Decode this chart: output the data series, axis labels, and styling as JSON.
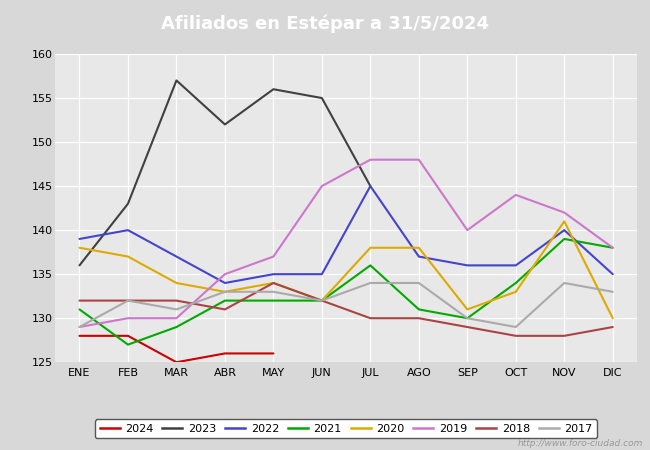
{
  "title": "Afiliados en Estépar a 31/5/2024",
  "title_bg_color": "#4472c4",
  "title_text_color": "white",
  "ylim": [
    125,
    160
  ],
  "yticks": [
    125,
    130,
    135,
    140,
    145,
    150,
    155,
    160
  ],
  "months": [
    "ENE",
    "FEB",
    "MAR",
    "ABR",
    "MAY",
    "JUN",
    "JUL",
    "AGO",
    "SEP",
    "OCT",
    "NOV",
    "DIC"
  ],
  "watermark": "http://www.foro-ciudad.com",
  "series": {
    "2024": {
      "color": "#cc0000",
      "data": [
        128,
        128,
        125,
        126,
        126,
        null,
        null,
        null,
        null,
        null,
        null,
        null
      ]
    },
    "2023": {
      "color": "#404040",
      "data": [
        136,
        143,
        157,
        152,
        156,
        155,
        145,
        null,
        null,
        null,
        null,
        null
      ]
    },
    "2022": {
      "color": "#4444cc",
      "data": [
        139,
        140,
        137,
        134,
        135,
        135,
        145,
        137,
        136,
        136,
        140,
        135
      ]
    },
    "2021": {
      "color": "#00aa00",
      "data": [
        131,
        127,
        129,
        132,
        132,
        132,
        136,
        131,
        130,
        134,
        139,
        138
      ]
    },
    "2020": {
      "color": "#ddaa00",
      "data": [
        138,
        137,
        134,
        133,
        134,
        132,
        138,
        138,
        131,
        133,
        141,
        130
      ]
    },
    "2019": {
      "color": "#cc77cc",
      "data": [
        129,
        130,
        130,
        135,
        137,
        145,
        148,
        148,
        140,
        144,
        142,
        138
      ]
    },
    "2018": {
      "color": "#aa4444",
      "data": [
        132,
        132,
        132,
        131,
        134,
        132,
        130,
        130,
        129,
        128,
        128,
        129
      ]
    },
    "2017": {
      "color": "#aaaaaa",
      "data": [
        129,
        132,
        131,
        133,
        133,
        132,
        134,
        134,
        130,
        129,
        134,
        133
      ]
    }
  },
  "legend_order": [
    "2024",
    "2023",
    "2022",
    "2021",
    "2020",
    "2019",
    "2018",
    "2017"
  ],
  "bg_color": "#d8d8d8",
  "plot_bg_color": "#e8e8e8"
}
